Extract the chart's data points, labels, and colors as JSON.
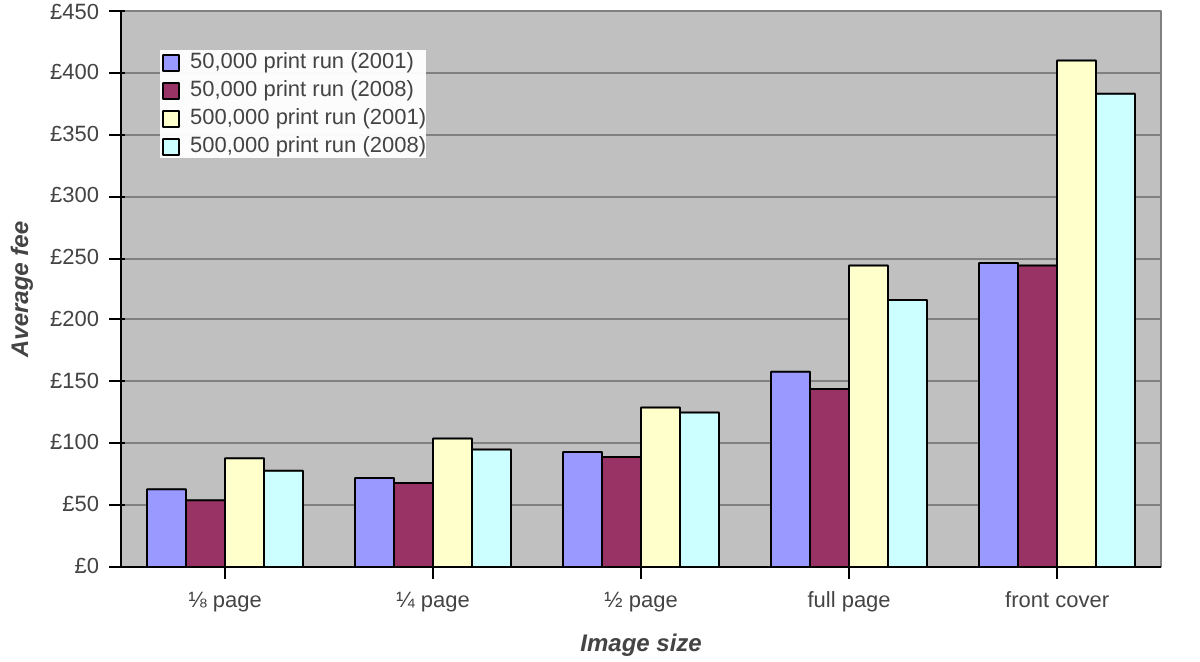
{
  "chart_data": {
    "type": "bar",
    "xlabel": "Image size",
    "ylabel": "Average fee",
    "categories": [
      "⅛ page",
      "¼ page",
      "½ page",
      "full page",
      "front cover"
    ],
    "series": [
      {
        "name": "50,000 print run (2001)",
        "color": "#9999ff",
        "values": [
          63,
          72,
          93,
          158,
          246
        ]
      },
      {
        "name": "50,000 print run (2008)",
        "color": "#993366",
        "values": [
          54,
          68,
          89,
          144,
          244
        ]
      },
      {
        "name": "500,000 print run (2001)",
        "color": "#ffffcc",
        "values": [
          88,
          104,
          129,
          244,
          410
        ]
      },
      {
        "name": "500,000 print run (2008)",
        "color": "#ccffff",
        "values": [
          78,
          95,
          125,
          216,
          383
        ]
      }
    ],
    "ylim": [
      0,
      450
    ],
    "yticks": [
      {
        "value": 0,
        "label": "£0"
      },
      {
        "value": 50,
        "label": "£50"
      },
      {
        "value": 100,
        "label": "£100"
      },
      {
        "value": 150,
        "label": "£150"
      },
      {
        "value": 200,
        "label": "£200"
      },
      {
        "value": 250,
        "label": "£250"
      },
      {
        "value": 300,
        "label": "£300"
      },
      {
        "value": 350,
        "label": "£350"
      },
      {
        "value": 400,
        "label": "£400"
      },
      {
        "value": 450,
        "label": "£450"
      }
    ],
    "grid": "y",
    "legend": "top left"
  }
}
